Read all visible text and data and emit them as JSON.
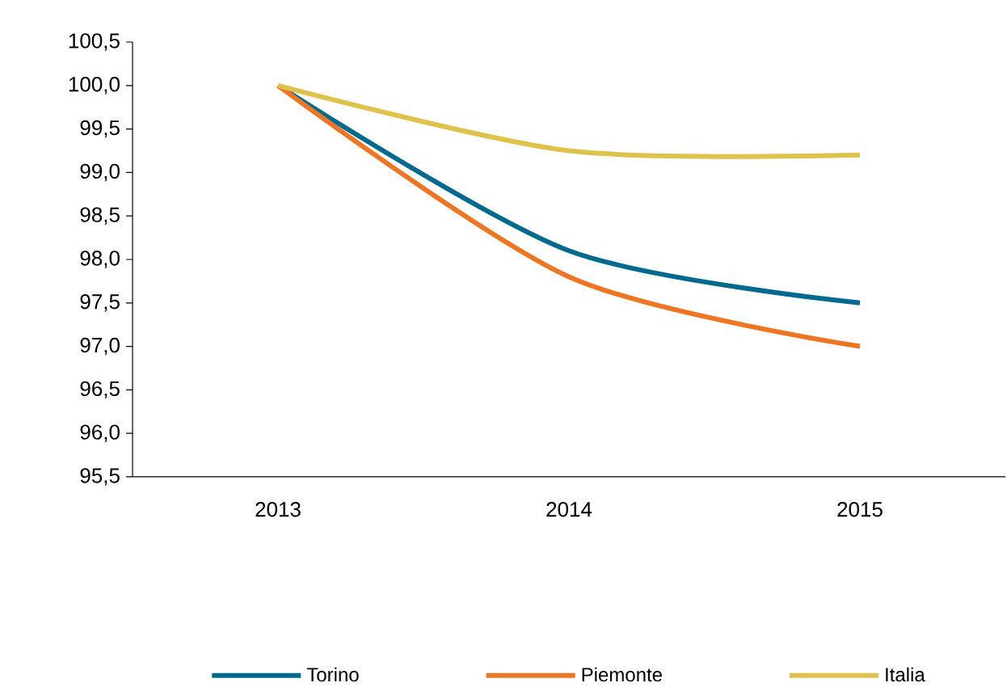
{
  "chart_data": {
    "type": "line",
    "categories": [
      "2013",
      "2014",
      "2015"
    ],
    "series": [
      {
        "name": "Torino",
        "color": "#006a8e",
        "values": [
          100.0,
          98.1,
          97.5
        ]
      },
      {
        "name": "Piemonte",
        "color": "#ee7623",
        "values": [
          100.0,
          97.8,
          97.0
        ]
      },
      {
        "name": "Italia",
        "color": "#dfc24c",
        "values": [
          100.0,
          99.25,
          99.2
        ]
      }
    ],
    "ylim": [
      95.5,
      100.5
    ],
    "yticks": [
      {
        "value": 95.5,
        "label": "95,5"
      },
      {
        "value": 96.0,
        "label": "96,0"
      },
      {
        "value": 96.5,
        "label": "96,5"
      },
      {
        "value": 97.0,
        "label": "97,0"
      },
      {
        "value": 97.5,
        "label": "97,5"
      },
      {
        "value": 98.0,
        "label": "98,0"
      },
      {
        "value": 98.5,
        "label": "98,5"
      },
      {
        "value": 99.0,
        "label": "99,0"
      },
      {
        "value": 99.5,
        "label": "99,5"
      },
      {
        "value": 100.0,
        "label": "100,0"
      },
      {
        "value": 100.5,
        "label": "100,5"
      }
    ],
    "grid": false,
    "legend": "bottom",
    "marker": "none",
    "line_style": "solid"
  }
}
